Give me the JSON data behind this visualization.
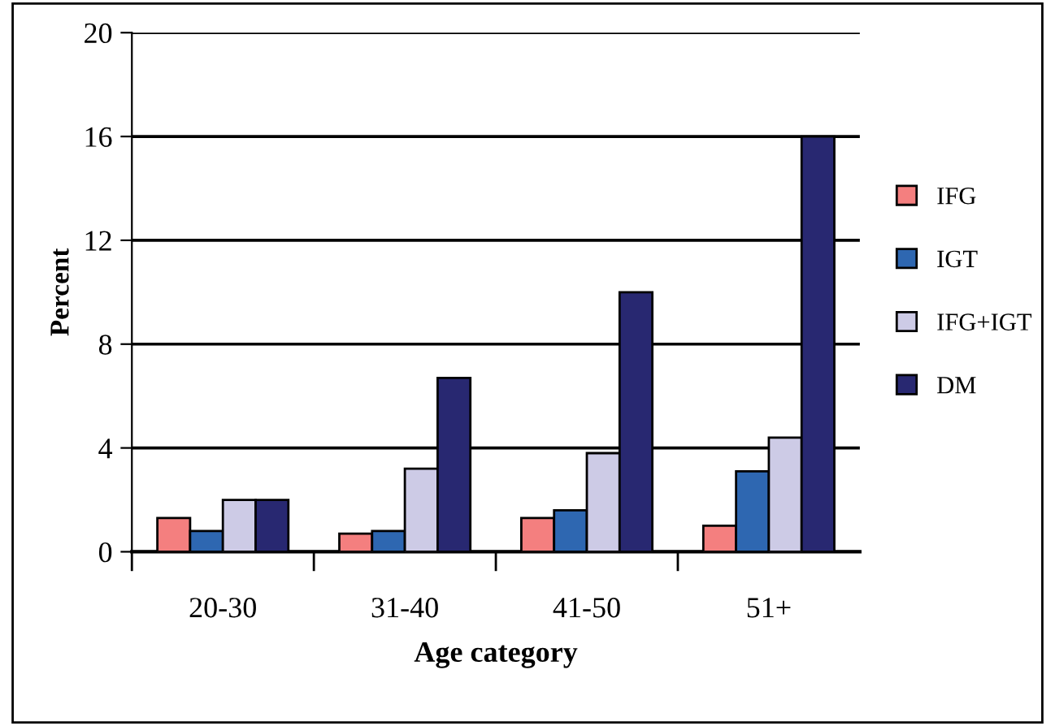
{
  "chart_data": {
    "type": "bar",
    "xlabel": "Age category",
    "ylabel": "Percent",
    "categories": [
      "20-30",
      "31-40",
      "41-50",
      "51+"
    ],
    "series": [
      {
        "name": "IFG",
        "color": "#f47f7f",
        "values": [
          1.3,
          0.7,
          1.3,
          1.0
        ]
      },
      {
        "name": "IGT",
        "color": "#2e67b1",
        "values": [
          0.8,
          0.8,
          1.6,
          3.1
        ]
      },
      {
        "name": "IFG+IGT",
        "color": "#cdcbe6",
        "values": [
          2.0,
          3.2,
          3.8,
          4.4
        ]
      },
      {
        "name": "DM",
        "color": "#282871",
        "values": [
          2.0,
          6.7,
          10.0,
          16.0
        ]
      }
    ],
    "ylim": [
      0,
      20
    ],
    "yticks": [
      0,
      4,
      8,
      12,
      16,
      20
    ],
    "grid": "y",
    "legend": "right"
  }
}
